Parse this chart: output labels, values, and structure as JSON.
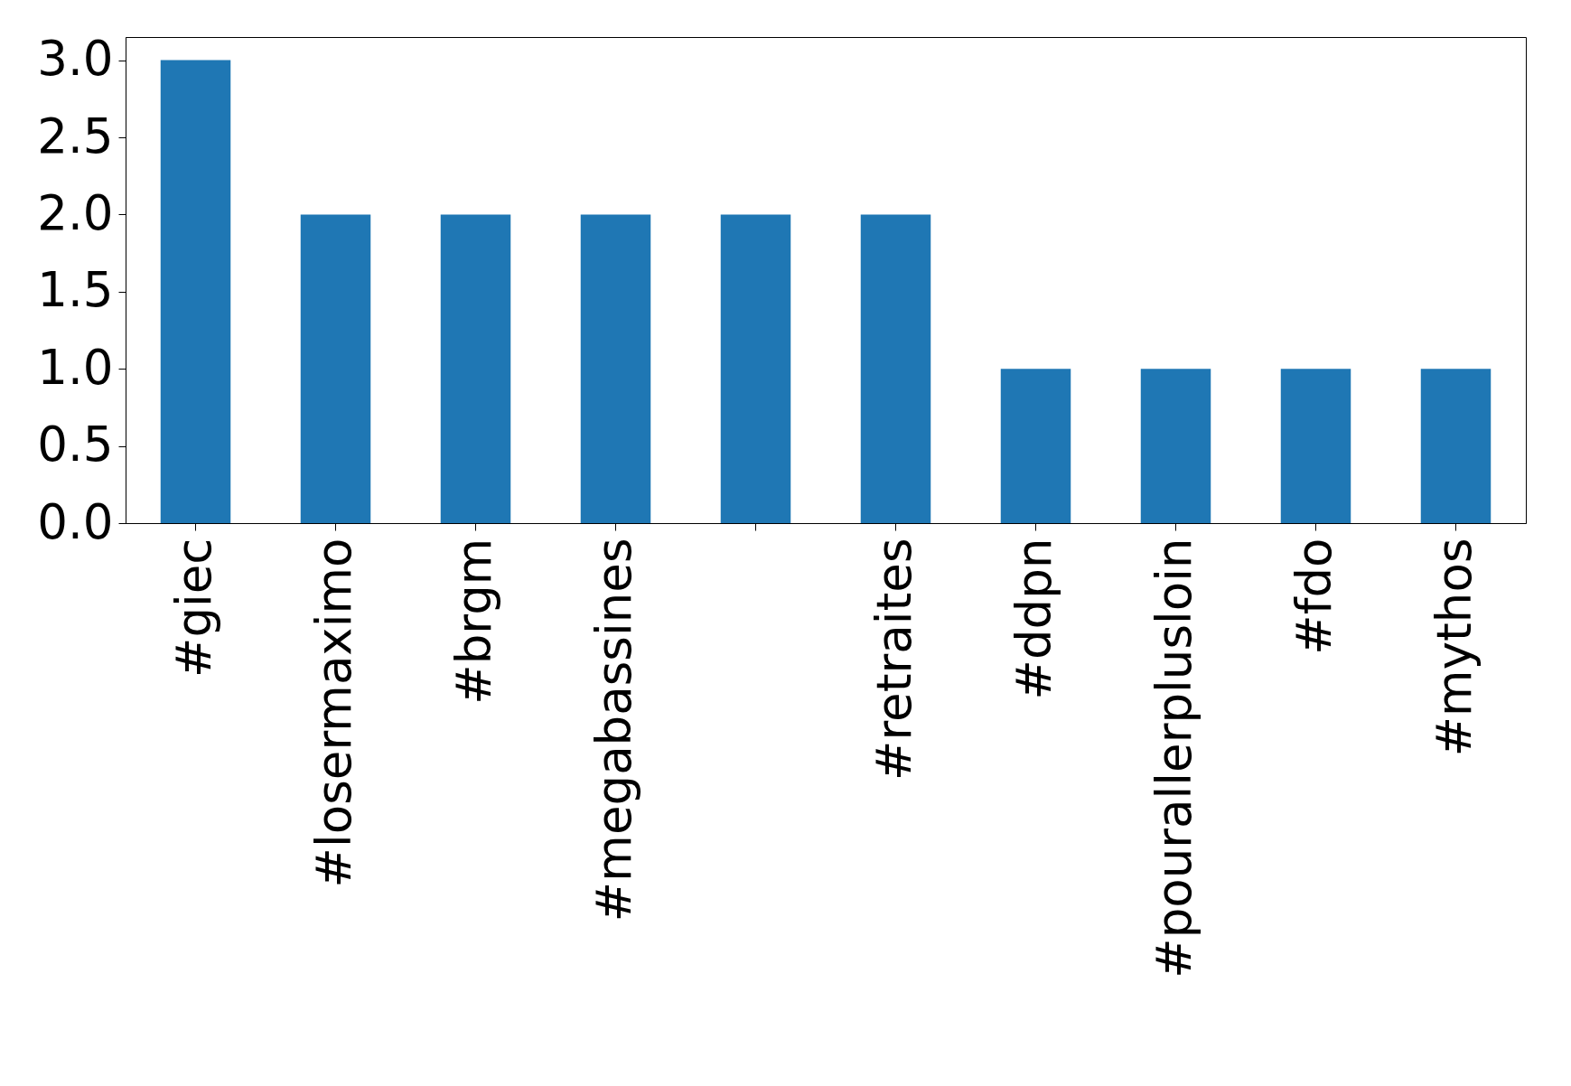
{
  "chart_data": {
    "type": "bar",
    "categories": [
      "#giec",
      "#losermaximo",
      "#brgm",
      "#megabassines",
      null,
      "#retraites",
      "#ddpn",
      "#pourallerplusloin",
      "#fdo",
      "#mythos"
    ],
    "values": [
      3,
      2,
      2,
      2,
      2,
      2,
      1,
      1,
      1,
      1
    ],
    "color": "#1f77b4",
    "ylim": [
      0,
      3.15
    ],
    "yticks": [
      {
        "value": 0,
        "label": "0.0"
      },
      0.5,
      {
        "value": 1,
        "label": "1.0"
      },
      1.5,
      {
        "value": 2,
        "label": "2.0"
      },
      2.5,
      {
        "value": 3,
        "label": "3.0"
      }
    ],
    "grid": false
  }
}
